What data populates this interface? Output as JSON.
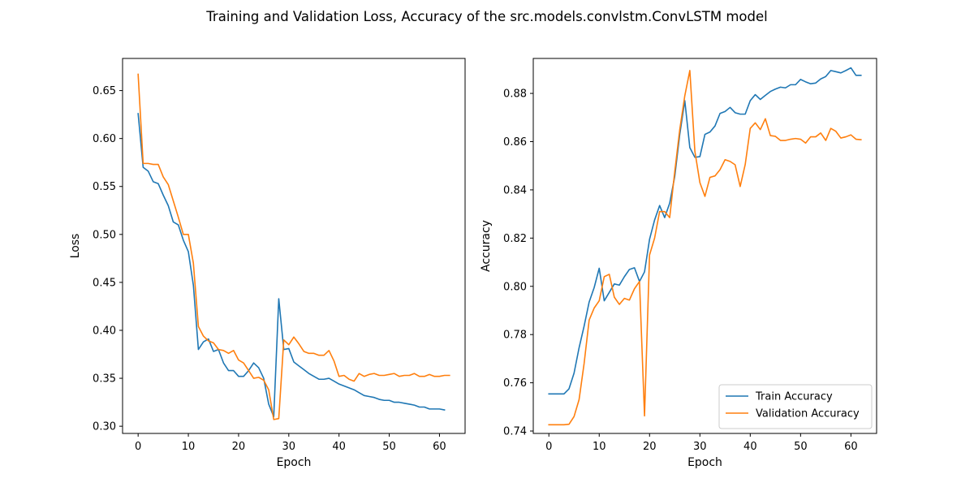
{
  "figure": {
    "title": "Training and Validation Loss, Accuracy of the src.models.convlstm.ConvLSTM model"
  },
  "chart_data": [
    {
      "type": "line",
      "id": "loss",
      "title": "",
      "xlabel": "Epoch",
      "ylabel": "Loss",
      "xlim": [
        -3.1,
        65.1
      ],
      "ylim": [
        0.2925,
        0.6835
      ],
      "xticks": [
        0,
        10,
        20,
        30,
        40,
        50,
        60
      ],
      "yticks": [
        0.3,
        0.35,
        0.4,
        0.45,
        0.5,
        0.55,
        0.6,
        0.65
      ],
      "ytick_decimals": 2,
      "grid": false,
      "legend": null,
      "series": [
        {
          "color": "#1f77b4",
          "x": [
            0,
            1,
            2,
            3,
            4,
            5,
            6,
            7,
            8,
            9,
            10,
            11,
            12,
            13,
            14,
            15,
            16,
            17,
            18,
            19,
            20,
            21,
            22,
            23,
            24,
            25,
            26,
            27,
            28,
            29,
            30,
            31,
            32,
            33,
            34,
            35,
            36,
            37,
            38,
            39,
            40,
            41,
            42,
            43,
            44,
            45,
            46,
            47,
            48,
            49,
            50,
            51,
            52,
            53,
            54,
            55,
            56,
            57,
            58,
            59,
            60,
            61
          ],
          "y": [
            0.626,
            0.57,
            0.566,
            0.555,
            0.553,
            0.541,
            0.53,
            0.513,
            0.51,
            0.494,
            0.482,
            0.447,
            0.38,
            0.388,
            0.391,
            0.378,
            0.38,
            0.366,
            0.358,
            0.358,
            0.352,
            0.352,
            0.358,
            0.366,
            0.361,
            0.35,
            0.323,
            0.31,
            0.433,
            0.38,
            0.381,
            0.367,
            0.363,
            0.359,
            0.355,
            0.352,
            0.349,
            0.349,
            0.35,
            0.347,
            0.344,
            0.342,
            0.34,
            0.338,
            0.335,
            0.332,
            0.331,
            0.33,
            0.328,
            0.327,
            0.327,
            0.325,
            0.325,
            0.324,
            0.323,
            0.322,
            0.32,
            0.32,
            0.318,
            0.318,
            0.318,
            0.317
          ]
        },
        {
          "color": "#ff7f0e",
          "x": [
            0,
            1,
            2,
            3,
            4,
            5,
            6,
            7,
            8,
            9,
            10,
            11,
            12,
            13,
            14,
            15,
            16,
            17,
            18,
            19,
            20,
            21,
            22,
            23,
            24,
            25,
            26,
            27,
            28,
            29,
            30,
            31,
            32,
            33,
            34,
            35,
            36,
            37,
            38,
            39,
            40,
            41,
            42,
            43,
            44,
            45,
            46,
            47,
            48,
            49,
            50,
            51,
            52,
            53,
            54,
            55,
            56,
            57,
            58,
            59,
            60,
            61,
            62
          ],
          "y": [
            0.667,
            0.574,
            0.574,
            0.573,
            0.573,
            0.56,
            0.552,
            0.535,
            0.518,
            0.5,
            0.5,
            0.47,
            0.404,
            0.394,
            0.389,
            0.387,
            0.38,
            0.379,
            0.376,
            0.379,
            0.369,
            0.366,
            0.358,
            0.35,
            0.351,
            0.348,
            0.338,
            0.307,
            0.308,
            0.39,
            0.385,
            0.393,
            0.386,
            0.378,
            0.376,
            0.376,
            0.374,
            0.374,
            0.379,
            0.368,
            0.352,
            0.353,
            0.349,
            0.347,
            0.355,
            0.352,
            0.354,
            0.355,
            0.353,
            0.353,
            0.354,
            0.355,
            0.352,
            0.353,
            0.353,
            0.355,
            0.352,
            0.352,
            0.354,
            0.352,
            0.352,
            0.353,
            0.353
          ]
        }
      ]
    },
    {
      "type": "line",
      "id": "accuracy",
      "title": "",
      "xlabel": "Epoch",
      "ylabel": "Accuracy",
      "xlim": [
        -3.1,
        65.1
      ],
      "ylim": [
        0.739,
        0.8945
      ],
      "xticks": [
        0,
        10,
        20,
        30,
        40,
        50,
        60
      ],
      "yticks": [
        0.74,
        0.76,
        0.78,
        0.8,
        0.82,
        0.84,
        0.86,
        0.88
      ],
      "ytick_decimals": 2,
      "grid": false,
      "legend": "bottom-right",
      "series": [
        {
          "name": "Train Accuracy",
          "color": "#1f77b4",
          "x": [
            0,
            1,
            2,
            3,
            4,
            5,
            6,
            7,
            8,
            9,
            10,
            11,
            12,
            13,
            14,
            15,
            16,
            17,
            18,
            19,
            20,
            21,
            22,
            23,
            24,
            25,
            26,
            27,
            28,
            29,
            30,
            31,
            32,
            33,
            34,
            35,
            36,
            37,
            38,
            39,
            40,
            41,
            42,
            43,
            44,
            45,
            46,
            47,
            48,
            49,
            50,
            51,
            52,
            53,
            54,
            55,
            56,
            57,
            58,
            59,
            60,
            61,
            62
          ],
          "y": [
            0.7554,
            0.7554,
            0.7554,
            0.7554,
            0.7575,
            0.764,
            0.7745,
            0.7835,
            0.7935,
            0.7995,
            0.8075,
            0.794,
            0.7975,
            0.801,
            0.8005,
            0.804,
            0.807,
            0.8077,
            0.802,
            0.806,
            0.8195,
            0.8275,
            0.8335,
            0.8285,
            0.8345,
            0.8455,
            0.863,
            0.877,
            0.8575,
            0.8535,
            0.8538,
            0.863,
            0.864,
            0.8665,
            0.8717,
            0.8725,
            0.8742,
            0.872,
            0.8714,
            0.8714,
            0.877,
            0.8795,
            0.8775,
            0.8792,
            0.8808,
            0.8818,
            0.8826,
            0.8823,
            0.8836,
            0.8836,
            0.8858,
            0.8848,
            0.884,
            0.8843,
            0.886,
            0.887,
            0.8895,
            0.889,
            0.8885,
            0.8895,
            0.8906,
            0.8875,
            0.8875
          ]
        },
        {
          "name": "Validation Accuracy",
          "color": "#ff7f0e",
          "x": [
            0,
            1,
            2,
            3,
            4,
            5,
            6,
            7,
            8,
            9,
            10,
            11,
            12,
            13,
            14,
            15,
            16,
            17,
            18,
            19,
            20,
            21,
            22,
            23,
            24,
            25,
            26,
            27,
            28,
            29,
            30,
            31,
            32,
            33,
            34,
            35,
            36,
            37,
            38,
            39,
            40,
            41,
            42,
            43,
            44,
            45,
            46,
            47,
            48,
            49,
            50,
            51,
            52,
            53,
            54,
            55,
            56,
            57,
            58,
            59,
            60,
            61,
            62
          ],
          "y": [
            0.7426,
            0.7426,
            0.7426,
            0.7426,
            0.7428,
            0.746,
            0.753,
            0.768,
            0.786,
            0.791,
            0.794,
            0.804,
            0.805,
            0.7955,
            0.7925,
            0.795,
            0.7943,
            0.799,
            0.802,
            0.7463,
            0.813,
            0.82,
            0.831,
            0.831,
            0.8285,
            0.8475,
            0.865,
            0.879,
            0.8895,
            0.856,
            0.843,
            0.8373,
            0.8452,
            0.8458,
            0.8484,
            0.8525,
            0.8518,
            0.8504,
            0.8414,
            0.8505,
            0.8655,
            0.8678,
            0.865,
            0.8695,
            0.8625,
            0.8622,
            0.8605,
            0.8605,
            0.861,
            0.8613,
            0.861,
            0.8594,
            0.862,
            0.862,
            0.8636,
            0.8605,
            0.8655,
            0.8643,
            0.8615,
            0.862,
            0.8628,
            0.861,
            0.8608
          ]
        }
      ]
    }
  ]
}
